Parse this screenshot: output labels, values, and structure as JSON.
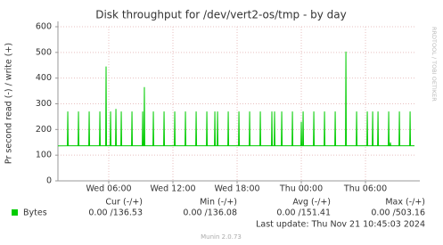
{
  "chart_data": {
    "type": "line",
    "title": "Disk throughput for /dev/vert2-os/tmp - by day",
    "y_label": "Pr second read (-) / write (+)",
    "watermark": "RRDTOOL / TOBI OETIKER",
    "xlim": [
      1.25,
      34.58
    ],
    "xticks": [
      {
        "value": 6,
        "label": "Wed 06:00"
      },
      {
        "value": 12,
        "label": "Wed 12:00"
      },
      {
        "value": 18,
        "label": "Wed 18:00"
      },
      {
        "value": 24,
        "label": "Thu 00:00"
      },
      {
        "value": 30,
        "label": "Thu 06:00"
      }
    ],
    "ylim": [
      0,
      600
    ],
    "yticks": [
      0,
      100,
      200,
      300,
      400,
      500,
      600
    ],
    "grid": true,
    "x": [
      1.25,
      2.13,
      2.17,
      2.21,
      3.13,
      3.17,
      3.21,
      4.13,
      4.17,
      4.21,
      5.13,
      5.17,
      5.21,
      5.71,
      5.75,
      5.79,
      6.13,
      6.17,
      6.21,
      6.63,
      6.67,
      6.71,
      7.13,
      7.17,
      7.21,
      8.13,
      8.17,
      8.21,
      9.13,
      9.17,
      9.21,
      9.29,
      9.33,
      9.37,
      10.13,
      10.17,
      10.21,
      11.13,
      11.17,
      11.21,
      12.13,
      12.17,
      12.21,
      13.13,
      13.17,
      13.21,
      14.13,
      14.17,
      14.21,
      15.13,
      15.17,
      15.21,
      15.88,
      15.92,
      15.96,
      16.13,
      16.17,
      16.21,
      17.13,
      17.17,
      17.21,
      18.13,
      18.17,
      18.21,
      19.13,
      19.17,
      19.21,
      20.13,
      20.17,
      20.21,
      21.21,
      21.25,
      21.29,
      21.46,
      21.5,
      21.54,
      22.13,
      22.17,
      22.21,
      23.13,
      23.17,
      23.21,
      23.96,
      24.0,
      24.04,
      24.13,
      24.17,
      24.21,
      25.13,
      25.17,
      25.21,
      26.13,
      26.17,
      26.21,
      27.13,
      27.17,
      27.21,
      28.13,
      28.17,
      28.21,
      29.13,
      29.17,
      29.21,
      30.13,
      30.17,
      30.21,
      30.63,
      30.67,
      30.71,
      31.13,
      31.17,
      31.21,
      32.13,
      32.17,
      32.21,
      32.29,
      32.33,
      32.37,
      33.13,
      33.17,
      33.21,
      34.13,
      34.17,
      34.21,
      34.58
    ],
    "series": [
      {
        "name": "Bytes",
        "color": "#00cc00",
        "stats": [
          "0.00 /136.53",
          "0.00 /136.08",
          "0.00 /151.41",
          "0.00 /503.16"
        ],
        "values": [
          136.08,
          136.5,
          270,
          136.5,
          136.5,
          270,
          136.5,
          136.5,
          270,
          136.5,
          136.5,
          270,
          136.5,
          136.5,
          445,
          136.5,
          136.5,
          270,
          136.5,
          136.5,
          280,
          136.5,
          136.5,
          270,
          136.5,
          136.5,
          270,
          136.5,
          136.5,
          270,
          136.5,
          136.5,
          365,
          136.5,
          136.5,
          270,
          136.5,
          136.5,
          270,
          136.5,
          136.5,
          270,
          136.5,
          136.5,
          270,
          136.5,
          136.5,
          270,
          136.5,
          136.5,
          270,
          136.5,
          136.5,
          270,
          136.5,
          136.5,
          270,
          136.5,
          136.5,
          270,
          136.5,
          136.5,
          270,
          136.5,
          136.5,
          270,
          136.5,
          136.5,
          270,
          136.5,
          136.5,
          270,
          136.5,
          136.5,
          270,
          136.5,
          136.5,
          270,
          136.5,
          136.5,
          270,
          136.5,
          136.5,
          230,
          136.5,
          136.5,
          270,
          136.5,
          136.5,
          270,
          136.5,
          136.5,
          270,
          136.5,
          136.5,
          270,
          136.5,
          136.5,
          503.16,
          136.5,
          136.5,
          270,
          136.5,
          136.5,
          270,
          136.5,
          136.5,
          270,
          136.5,
          136.5,
          270,
          136.5,
          136.5,
          270,
          136.5,
          136.5,
          150,
          136.5,
          136.5,
          270,
          136.5,
          136.5,
          270,
          136.5,
          136.53
        ]
      }
    ],
    "stats_headers": [
      "Cur (-/+)",
      "Min (-/+)",
      "Avg (-/+)",
      "Max (-/+)"
    ],
    "last_update": "Last update: Thu Nov 21 10:45:03 2024",
    "footer": "Munin 2.0.73"
  }
}
